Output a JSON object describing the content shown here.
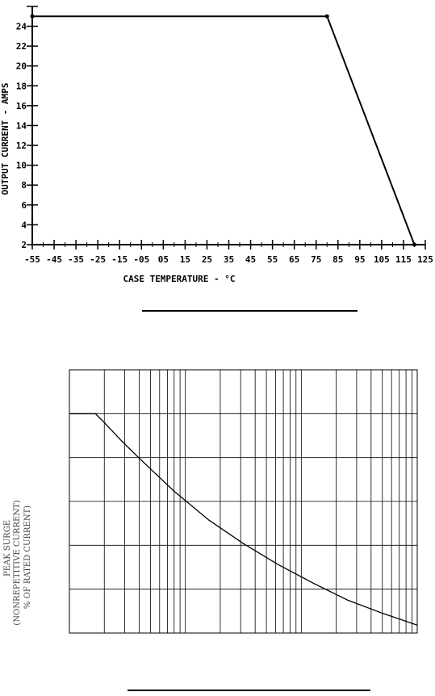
{
  "chart_data": [
    {
      "type": "line",
      "title": "",
      "xlabel": "CASE TEMPERATURE - °C",
      "ylabel": "OUTPUT CURRENT - AMPS",
      "x_ticks": [
        "-55",
        "-45",
        "-35",
        "-25",
        "-15",
        "-05",
        "05",
        "15",
        "25",
        "35",
        "45",
        "55",
        "65",
        "75",
        "85",
        "95",
        "105",
        "115",
        "125"
      ],
      "y_ticks": [
        "2",
        "4",
        "6",
        "8",
        "10",
        "12",
        "14",
        "16",
        "18",
        "20",
        "22",
        "24"
      ],
      "xlim": [
        -55,
        125
      ],
      "ylim": [
        2,
        26
      ],
      "grid": false,
      "series": [
        {
          "x": [
            -55,
            80,
            120
          ],
          "y": [
            25,
            25,
            2
          ]
        }
      ]
    },
    {
      "type": "line",
      "title": "",
      "xlabel": "",
      "ylabel_lines": [
        "PEAK SURGE",
        "(NONREPETITIVE CURRENT)",
        "% OF RATED CURRENT)"
      ],
      "x_scale": "log",
      "x_decades": 3,
      "y_divisions": 6,
      "grid": true,
      "series": [
        {
          "x_frac": [
            0.0,
            0.075,
            0.1,
            0.15,
            0.2,
            0.3,
            0.4,
            0.5,
            0.6,
            0.7,
            0.8,
            0.9,
            1.0
          ],
          "y_frac": [
            0.833,
            0.833,
            0.8,
            0.73,
            0.665,
            0.54,
            0.43,
            0.34,
            0.26,
            0.19,
            0.125,
            0.075,
            0.03
          ]
        }
      ]
    }
  ]
}
